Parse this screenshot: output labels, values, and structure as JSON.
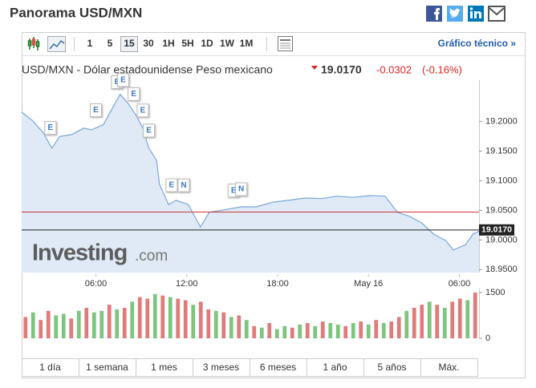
{
  "header": {
    "title": "Panorama USD/MXN"
  },
  "toolbar": {
    "intervals": [
      "1",
      "5",
      "15",
      "30",
      "1H",
      "5H",
      "1D",
      "1W",
      "1M"
    ],
    "selected": "15",
    "link": "Gráfico técnico »"
  },
  "quote": {
    "name": "USD/MXN - Dólar estadounidense Peso mexicano",
    "last": "19.0170",
    "change": "-0.0302",
    "change_pct": "(-0.16%)"
  },
  "watermark": {
    "brand": "Investing",
    "suffix": ".com"
  },
  "ranges": [
    "1 día",
    "1 semana",
    "1 mes",
    "3 meses",
    "6 meses",
    "1 año",
    "5 años",
    "Máx."
  ],
  "chart_data": [
    {
      "type": "area",
      "color": "#7aa6d6",
      "fill": "#dfeaf6",
      "x": [
        1.1,
        1.8,
        2.5,
        3.1,
        3.6,
        4.4,
        5.2,
        5.7,
        6.5,
        7.1,
        7.6,
        8.1,
        8.7,
        9.1,
        9.5,
        10.0,
        10.2,
        10.8,
        11.3,
        12.1,
        12.9,
        13.5,
        14.5,
        15.6,
        16.6,
        17.7,
        18.7,
        19.8,
        20.9,
        21.9,
        23.0,
        24.1,
        25.1,
        25.9,
        26.7,
        27.5,
        28.3,
        29.1,
        29.6,
        30.4,
        30.9,
        31.3
      ],
      "values": [
        19.216,
        19.202,
        19.182,
        19.155,
        19.175,
        19.178,
        19.189,
        19.186,
        19.195,
        19.223,
        19.246,
        19.232,
        19.209,
        19.189,
        19.155,
        19.135,
        19.094,
        19.06,
        19.067,
        19.06,
        19.022,
        19.047,
        19.051,
        19.056,
        19.056,
        19.064,
        19.067,
        19.071,
        19.07,
        19.074,
        19.072,
        19.075,
        19.074,
        19.047,
        19.04,
        19.029,
        19.01,
        18.999,
        18.983,
        18.992,
        19.01,
        19.015
      ],
      "xlim": [
        1.1,
        31.3
      ],
      "xticks": [
        {
          "value": 6,
          "label": "06:00"
        },
        {
          "value": 12,
          "label": "12:00"
        },
        {
          "value": 18,
          "label": "18:00"
        },
        {
          "value": 24,
          "label": "May 16"
        },
        {
          "value": 30,
          "label": "06:00"
        }
      ],
      "ylim": [
        18.945,
        19.27
      ],
      "yticks": [
        {
          "value": 18.95,
          "label": "18.9500"
        },
        {
          "value": 19.0,
          "label": "19.0000"
        },
        {
          "value": 19.05,
          "label": "19.0500"
        },
        {
          "value": 19.1,
          "label": "19.1000"
        },
        {
          "value": 19.15,
          "label": "19.1500"
        },
        {
          "value": 19.2,
          "label": "19.2000"
        }
      ],
      "prev_close": 19.0472,
      "prev_close_color": "#cc3333",
      "last": {
        "value": 19.017,
        "label": "19.0170"
      },
      "events": [
        {
          "x": 3.0,
          "label": "E"
        },
        {
          "x": 6.0,
          "label": "E"
        },
        {
          "x": 7.4,
          "label": "E"
        },
        {
          "x": 7.8,
          "label": "E"
        },
        {
          "x": 8.5,
          "label": "E"
        },
        {
          "x": 9.1,
          "label": "E"
        },
        {
          "x": 9.5,
          "label": "E"
        },
        {
          "x": 11.0,
          "label": "E"
        },
        {
          "x": 11.8,
          "label": "N"
        },
        {
          "x": 15.1,
          "label": "E"
        },
        {
          "x": 15.6,
          "label": "N"
        }
      ]
    },
    {
      "type": "bar",
      "values": [
        700,
        850,
        600,
        900,
        750,
        800,
        650,
        900,
        1000,
        850,
        900,
        1100,
        950,
        1000,
        1200,
        1350,
        1300,
        1450,
        1400,
        1350,
        1300,
        1250,
        1100,
        1200,
        950,
        900,
        850,
        700,
        750,
        600,
        400,
        350,
        500,
        300,
        400,
        350,
        450,
        500,
        400,
        550,
        500,
        450,
        400,
        500,
        550,
        450,
        600,
        500,
        550,
        700,
        900,
        1000,
        1100,
        1200,
        1100,
        1000,
        1200,
        1300,
        1250,
        1500
      ],
      "colors": [
        "#e07b7b",
        "#7dc47d",
        "#e07b7b",
        "#e07b7b",
        "#7dc47d",
        "#7dc47d",
        "#e07b7b",
        "#7dc47d",
        "#e07b7b",
        "#7dc47d",
        "#7dc47d",
        "#e07b7b",
        "#7dc47d",
        "#e07b7b",
        "#7dc47d",
        "#e07b7b",
        "#e07b7b",
        "#7dc47d",
        "#e07b7b",
        "#7dc47d",
        "#e07b7b",
        "#e07b7b",
        "#7dc47d",
        "#e07b7b",
        "#e07b7b",
        "#7dc47d",
        "#e07b7b",
        "#7dc47d",
        "#e07b7b",
        "#7dc47d",
        "#e07b7b",
        "#7dc47d",
        "#e07b7b",
        "#7dc47d",
        "#7dc47d",
        "#e07b7b",
        "#7dc47d",
        "#e07b7b",
        "#7dc47d",
        "#e07b7b",
        "#7dc47d",
        "#7dc47d",
        "#e07b7b",
        "#7dc47d",
        "#e07b7b",
        "#7dc47d",
        "#e07b7b",
        "#7dc47d",
        "#e07b7b",
        "#e07b7b",
        "#7dc47d",
        "#e07b7b",
        "#e07b7b",
        "#7dc47d",
        "#e07b7b",
        "#7dc47d",
        "#e07b7b",
        "#e07b7b",
        "#7dc47d",
        "#e07b7b"
      ],
      "ylim": [
        0,
        1630
      ],
      "yticks": [
        0,
        1500
      ]
    }
  ]
}
